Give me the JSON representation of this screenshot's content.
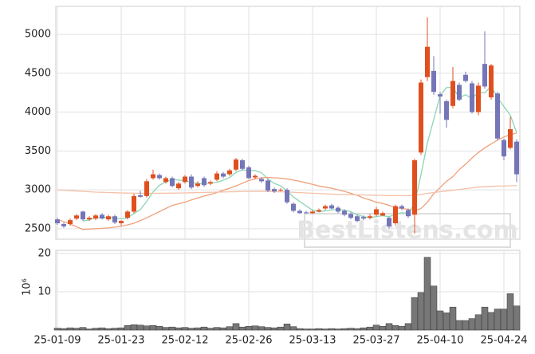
{
  "chart_data": {
    "type": "candlestick",
    "watermark": "BestListens.com",
    "categories": [
      "25-01-09",
      null,
      null,
      null,
      null,
      null,
      null,
      null,
      null,
      null,
      "25-01-23",
      null,
      null,
      null,
      null,
      null,
      null,
      null,
      null,
      null,
      "25-02-12",
      null,
      null,
      null,
      null,
      null,
      null,
      null,
      null,
      null,
      "25-02-26",
      null,
      null,
      null,
      null,
      null,
      null,
      null,
      null,
      null,
      "25-03-13",
      null,
      null,
      null,
      null,
      null,
      null,
      null,
      null,
      null,
      "25-03-27",
      null,
      null,
      null,
      null,
      null,
      null,
      null,
      null,
      null,
      "25-04-10",
      null,
      null,
      null,
      null,
      null,
      null,
      null,
      null,
      null,
      "25-04-24",
      null,
      null
    ],
    "open": [
      2620,
      2560,
      2560,
      2630,
      2720,
      2620,
      2630,
      2680,
      2620,
      2660,
      2570,
      2640,
      2720,
      2930,
      2920,
      3150,
      3190,
      3100,
      3150,
      3020,
      3100,
      3170,
      3050,
      3150,
      3080,
      3130,
      3210,
      3200,
      3260,
      3380,
      3290,
      3160,
      3140,
      3120,
      3010,
      2990,
      3000,
      2820,
      2730,
      2710,
      2700,
      2720,
      2760,
      2800,
      2770,
      2730,
      2690,
      2660,
      2650,
      2640,
      2680,
      2670,
      2640,
      2570,
      2790,
      2740,
      2680,
      3480,
      4450,
      4530,
      4230,
      4140,
      4080,
      4350,
      4480,
      4370,
      4000,
      4620,
      4190,
      4240,
      3640,
      3540,
      3620
    ],
    "high": [
      2640,
      2580,
      2630,
      2690,
      2730,
      2660,
      2690,
      2700,
      2680,
      2680,
      2610,
      2740,
      2950,
      2990,
      3140,
      3260,
      3210,
      3170,
      3170,
      3100,
      3190,
      3200,
      3110,
      3170,
      3120,
      3240,
      3230,
      3270,
      3410,
      3400,
      3310,
      3200,
      3160,
      3140,
      3030,
      3020,
      3020,
      2840,
      2750,
      2730,
      2740,
      2760,
      2810,
      2820,
      2790,
      2750,
      2710,
      2680,
      2670,
      2690,
      2780,
      2720,
      2650,
      2810,
      2810,
      2760,
      3400,
      4420,
      5220,
      4720,
      4260,
      4160,
      4580,
      4380,
      4520,
      4400,
      4380,
      5040,
      4620,
      4260,
      3660,
      3940,
      3650
    ],
    "low": [
      2550,
      2510,
      2540,
      2610,
      2600,
      2600,
      2610,
      2620,
      2600,
      2560,
      2540,
      2620,
      2700,
      2900,
      2900,
      3130,
      3130,
      3080,
      3030,
      3000,
      3080,
      3010,
      3030,
      3040,
      3060,
      3110,
      3150,
      3180,
      3240,
      3250,
      3140,
      3140,
      3090,
      2970,
      2960,
      2980,
      2820,
      2710,
      2690,
      2690,
      2690,
      2710,
      2740,
      2750,
      2700,
      2660,
      2620,
      2580,
      2610,
      2620,
      2660,
      2660,
      2500,
      2550,
      2740,
      2640,
      2440,
      3450,
      4400,
      4220,
      3980,
      3800,
      4050,
      4140,
      4380,
      3980,
      3960,
      4300,
      4160,
      3640,
      3380,
      3520,
      3100
    ],
    "close": [
      2570,
      2530,
      2610,
      2670,
      2620,
      2640,
      2670,
      2630,
      2660,
      2580,
      2600,
      2720,
      2920,
      2910,
      3110,
      3200,
      3150,
      3150,
      3050,
      3080,
      3170,
      3030,
      3080,
      3060,
      3100,
      3210,
      3170,
      3250,
      3390,
      3270,
      3150,
      3180,
      3110,
      2990,
      2980,
      3000,
      2840,
      2730,
      2700,
      2700,
      2720,
      2740,
      2790,
      2760,
      2720,
      2680,
      2640,
      2600,
      2630,
      2660,
      2750,
      2700,
      2530,
      2790,
      2760,
      2660,
      3380,
      4380,
      4840,
      4260,
      4200,
      3900,
      4400,
      4160,
      4400,
      4000,
      4340,
      4330,
      4600,
      3660,
      3430,
      3780,
      3200
    ],
    "up_color": "#e0501e",
    "down_color": "#7476b8",
    "ma": [
      {
        "color": "#8ad6b4",
        "values": [
          null,
          null,
          null,
          null,
          2600,
          2614,
          2642,
          2646,
          2644,
          2636,
          2628,
          2638,
          2696,
          2746,
          2852,
          2972,
          3058,
          3104,
          3132,
          3126,
          3120,
          3096,
          3082,
          3084,
          3088,
          3096,
          3124,
          3158,
          3224,
          3258,
          3246,
          3248,
          3220,
          3140,
          3082,
          3052,
          2984,
          2908,
          2850,
          2794,
          2738,
          2718,
          2730,
          2742,
          2746,
          2738,
          2718,
          2680,
          2654,
          2642,
          2656,
          2668,
          2654,
          2686,
          2706,
          2698,
          2824,
          3194,
          3604,
          3904,
          4212,
          4316,
          4320,
          4184,
          4224,
          4172,
          4260,
          4246,
          4334,
          4186,
          4072,
          3960,
          3734
        ]
      },
      {
        "color": "#f0a07a",
        "values": [
          2620,
          2590,
          2560,
          2525,
          2490,
          2495,
          2500,
          2505,
          2510,
          2520,
          2530,
          2550,
          2570,
          2605,
          2640,
          2680,
          2720,
          2760,
          2800,
          2820,
          2840,
          2870,
          2895,
          2920,
          2940,
          2965,
          2995,
          3020,
          3050,
          3085,
          3120,
          3140,
          3155,
          3160,
          3155,
          3150,
          3140,
          3125,
          3110,
          3090,
          3070,
          3050,
          3035,
          3020,
          3000,
          2980,
          2955,
          2930,
          2895,
          2870,
          2840,
          2825,
          2800,
          2770,
          2760,
          2750,
          2730,
          2760,
          2840,
          2950,
          3030,
          3110,
          3170,
          3260,
          3330,
          3410,
          3480,
          3540,
          3590,
          3640,
          3680,
          3710,
          3730
        ]
      },
      {
        "color": "#f4c0a8",
        "values": [
          3000,
          2995,
          2990,
          2985,
          2980,
          2975,
          2970,
          2968,
          2965,
          2963,
          2960,
          2958,
          2957,
          2956,
          2955,
          2955,
          2956,
          2957,
          2958,
          2959,
          2960,
          2962,
          2964,
          2966,
          2968,
          2970,
          2972,
          2974,
          2976,
          2978,
          2980,
          2980,
          2980,
          2978,
          2976,
          2974,
          2972,
          2968,
          2964,
          2960,
          2956,
          2952,
          2948,
          2945,
          2942,
          2940,
          2938,
          2936,
          2934,
          2932,
          2930,
          2928,
          2926,
          2925,
          2925,
          2926,
          2930,
          2940,
          2955,
          2965,
          2975,
          2985,
          2995,
          3005,
          3015,
          3025,
          3035,
          3040,
          3045,
          3048,
          3050,
          3052,
          3055
        ]
      }
    ],
    "ylim": [
      2365,
      5360
    ],
    "yticks": [
      2500,
      3000,
      3500,
      4000,
      4500,
      5000
    ],
    "volume": {
      "values": [
        0.5,
        0.4,
        0.6,
        0.5,
        0.7,
        0.3,
        0.5,
        0.6,
        0.4,
        0.5,
        0.6,
        1.2,
        1.4,
        1.3,
        1.1,
        1.2,
        1.0,
        0.7,
        0.8,
        0.6,
        0.7,
        0.5,
        0.6,
        0.8,
        0.5,
        0.7,
        0.6,
        0.9,
        1.7,
        0.8,
        1.0,
        1.1,
        0.9,
        0.7,
        0.6,
        0.8,
        1.6,
        0.9,
        0.4,
        0.3,
        0.3,
        0.4,
        0.3,
        0.4,
        0.3,
        0.4,
        0.5,
        0.4,
        0.6,
        0.8,
        1.3,
        1.0,
        1.7,
        1.2,
        1.0,
        1.7,
        8.5,
        9.8,
        19,
        11.5,
        5,
        4.5,
        6,
        2.5,
        2.5,
        3,
        4,
        6,
        4.6,
        5.5,
        5.5,
        9.5,
        6.3
      ],
      "color": "#777777",
      "ylim": [
        0,
        20.8
      ],
      "yticks": [
        10,
        20
      ],
      "unit_label": "10⁶"
    }
  }
}
